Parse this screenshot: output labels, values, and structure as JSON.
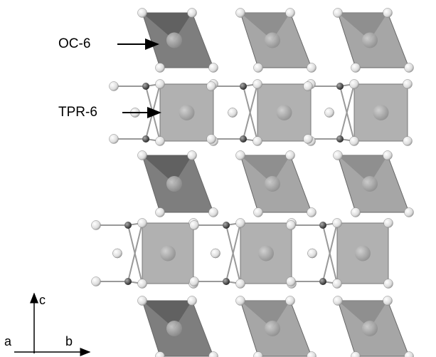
{
  "labels": {
    "oc6": "OC-6",
    "tpr6": "TPR-6"
  },
  "axes": {
    "a": "a",
    "b": "b",
    "c": "c"
  }
}
